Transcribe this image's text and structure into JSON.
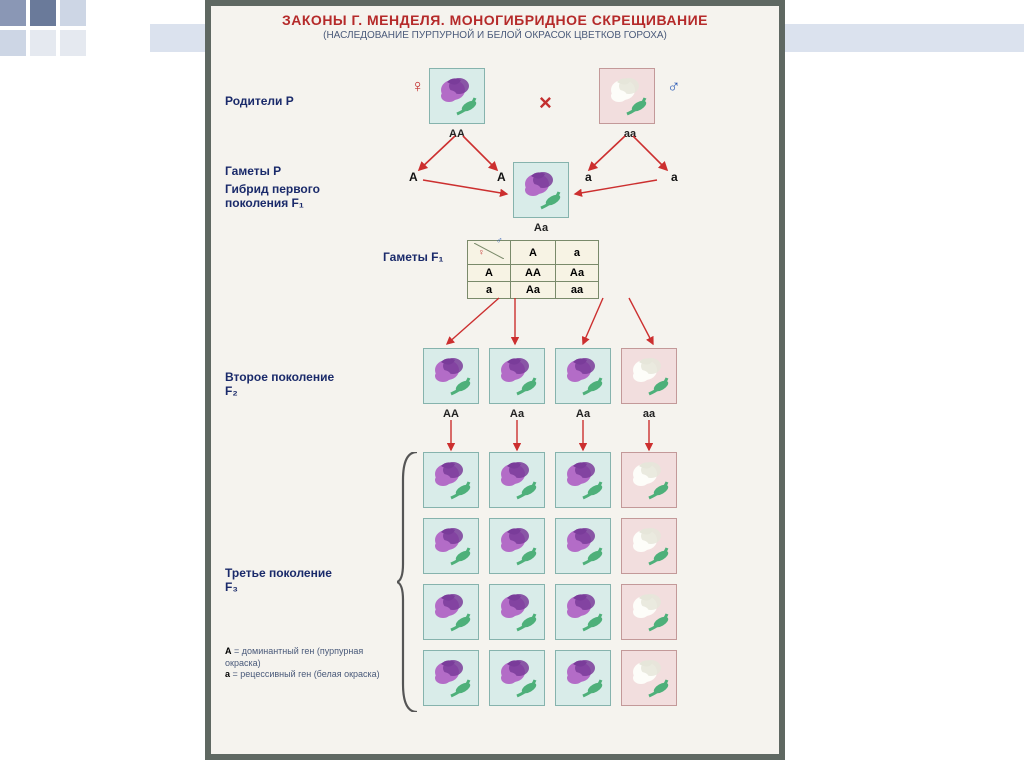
{
  "title": "ЗАКОНЫ Г. МЕНДЕЛЯ. МОНОГИБРИДНОЕ СКРЕЩИВАНИЕ",
  "subtitle": "(НАСЛЕДОВАНИЕ ПУРПУРНОЙ И БЕЛОЙ ОКРАСОК ЦВЕТКОВ ГОРОХА)",
  "labels": {
    "parents": "Родители Р",
    "gametes_p": "Гаметы Р",
    "hybrid_f1": "Гибрид первого поколения F₁",
    "gametes_f1": "Гаметы F₁",
    "gen2": "Второе поколение F₂",
    "gen3": "Третье поколение F₃"
  },
  "symbols": {
    "female": "♀",
    "male": "♂",
    "cross": "×"
  },
  "parents": {
    "female_geno": "АА",
    "male_geno": "аа"
  },
  "gametes_p": {
    "left": [
      "А",
      "А"
    ],
    "right": [
      "а",
      "а"
    ]
  },
  "f1_geno": "Аа",
  "punnett": {
    "col_headers": [
      "А",
      "а"
    ],
    "row_headers": [
      "А",
      "а"
    ],
    "cells": [
      [
        "АА",
        "Аа"
      ],
      [
        "Аа",
        "аа"
      ]
    ]
  },
  "f2": [
    {
      "geno": "АА",
      "bg": "female",
      "color": "purple"
    },
    {
      "geno": "Аа",
      "bg": "female",
      "color": "purple"
    },
    {
      "geno": "Аа",
      "bg": "female",
      "color": "purple"
    },
    {
      "geno": "аа",
      "bg": "male",
      "color": "white"
    }
  ],
  "f3_rows": 4,
  "f3_cols": 4,
  "f3_pattern": [
    [
      "purple",
      "purple",
      "purple",
      "white"
    ],
    [
      "purple",
      "purple",
      "purple",
      "white"
    ],
    [
      "purple",
      "purple",
      "purple",
      "white"
    ],
    [
      "purple",
      "purple",
      "purple",
      "white"
    ]
  ],
  "f3_bg": [
    [
      "female",
      "female",
      "female",
      "male"
    ],
    [
      "female",
      "female",
      "female",
      "male"
    ],
    [
      "female",
      "female",
      "female",
      "male"
    ],
    [
      "female",
      "female",
      "female",
      "male"
    ]
  ],
  "legend": {
    "dom_symbol": "А",
    "dom_text": "доминантный ген (пурпурная окраска)",
    "rec_symbol": "а",
    "rec_text": "рецессивный ген (белая окраска)"
  },
  "colors": {
    "title": "#b52a2a",
    "subtitle": "#4a5a7a",
    "poster_border": "#5f6862",
    "poster_bg": "#f5f3ee",
    "box_female_bg": "#d9ece9",
    "box_male_bg": "#f2dede",
    "flower_purple": "#b36cc7",
    "flower_purple_dark": "#7a3c9a",
    "flower_white": "#fdfdf9",
    "flower_white_shade": "#e6e6da",
    "leaf": "#4eb07a",
    "arrow": "#cc2f2f",
    "label": "#1a2a6a"
  }
}
